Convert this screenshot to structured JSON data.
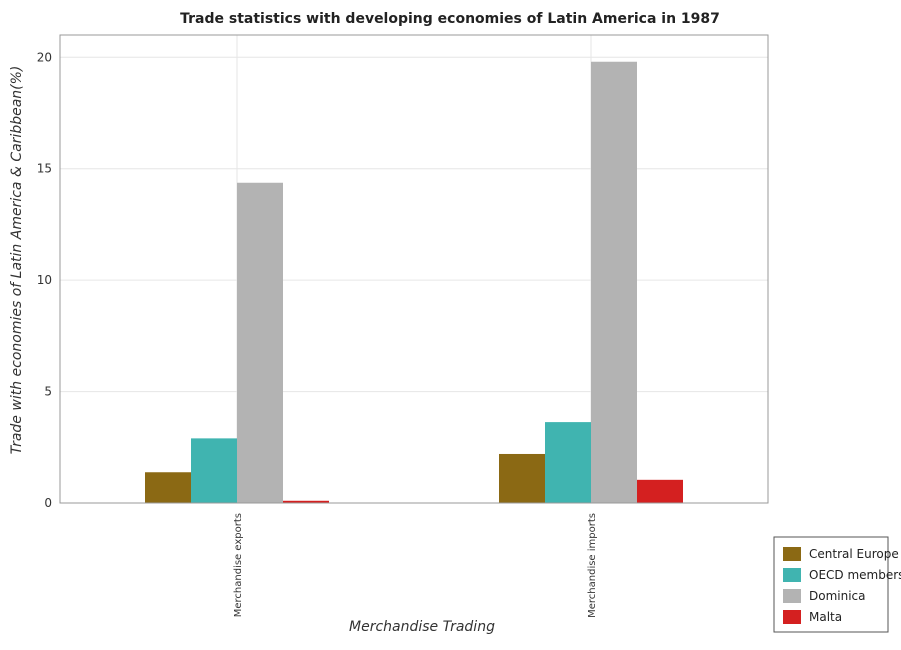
{
  "chart_data": {
    "type": "bar",
    "title": "Trade statistics with developing economies of Latin America in 1987",
    "xlabel": "Merchandise Trading",
    "ylabel": "Trade with economies of Latin America & Caribbean(%)",
    "categories": [
      "Merchandise exports",
      "Merchandise imports"
    ],
    "series": [
      {
        "name": "Central Europe",
        "color": "#8B6914",
        "values": [
          1.38,
          2.2
        ]
      },
      {
        "name": "OECD members",
        "color": "#40B4B0",
        "values": [
          2.9,
          3.63
        ]
      },
      {
        "name": "Dominica",
        "color": "#B3B3B3",
        "values": [
          14.37,
          19.8
        ]
      },
      {
        "name": "Malta",
        "color": "#D42020",
        "values": [
          0.1,
          1.04
        ]
      }
    ],
    "ylim": [
      0,
      21
    ],
    "yticks": [
      0,
      5,
      10,
      15,
      20
    ],
    "grid": true,
    "legend_position": "bottom-right"
  }
}
